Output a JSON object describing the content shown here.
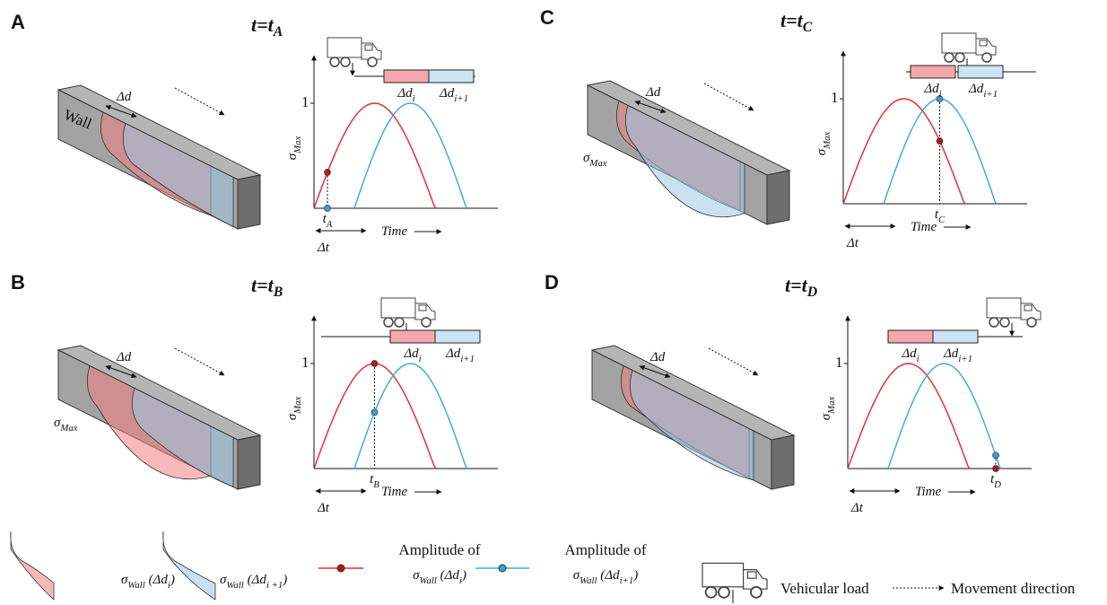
{
  "panels": [
    {
      "letter": "A",
      "title": [
        {
          "text": "t=t"
        },
        {
          "text": "A",
          "sub": true
        }
      ],
      "wall": "Wall",
      "delta_d": "Δd",
      "one": "1",
      "seg_i": [
        {
          "text": "Δd"
        },
        {
          "text": "i",
          "sub": true
        }
      ],
      "seg_i1": [
        {
          "text": "Δd"
        },
        {
          "text": "i+1",
          "sub": true
        }
      ],
      "y_label": [
        {
          "text": "σ"
        },
        {
          "text": "Max",
          "sub": true
        }
      ],
      "t_mark": [
        {
          "text": "t"
        },
        {
          "text": "A",
          "sub": true
        }
      ],
      "delta_t": "Δt",
      "time": "Time"
    },
    {
      "letter": "B",
      "title": [
        {
          "text": "t=t"
        },
        {
          "text": "B",
          "sub": true
        }
      ],
      "delta_d": "Δd",
      "sigma_max": [
        {
          "text": "σ"
        },
        {
          "text": "Max",
          "sub": true
        }
      ],
      "one": "1",
      "seg_i": [
        {
          "text": "Δd"
        },
        {
          "text": "i",
          "sub": true
        }
      ],
      "seg_i1": [
        {
          "text": "Δd"
        },
        {
          "text": "i+1",
          "sub": true
        }
      ],
      "y_label": [
        {
          "text": "σ"
        },
        {
          "text": "Max",
          "sub": true
        }
      ],
      "t_mark": [
        {
          "text": "t"
        },
        {
          "text": "B",
          "sub": true
        }
      ],
      "delta_t": "Δt",
      "time": "Time"
    },
    {
      "letter": "C",
      "title": [
        {
          "text": "t=t"
        },
        {
          "text": "C",
          "sub": true
        }
      ],
      "delta_d": "Δd",
      "sigma_max": [
        {
          "text": "σ"
        },
        {
          "text": "Max",
          "sub": true
        }
      ],
      "one": "1",
      "seg_i": [
        {
          "text": "Δd"
        },
        {
          "text": "i",
          "sub": true
        }
      ],
      "seg_i1": [
        {
          "text": "Δd"
        },
        {
          "text": "i+1",
          "sub": true
        }
      ],
      "y_label": [
        {
          "text": "σ"
        },
        {
          "text": "Max",
          "sub": true
        }
      ],
      "t_mark": [
        {
          "text": "t"
        },
        {
          "text": "C",
          "sub": true
        }
      ],
      "delta_t": "Δt",
      "time": "Time"
    },
    {
      "letter": "D",
      "title": [
        {
          "text": "t=t"
        },
        {
          "text": "D",
          "sub": true
        }
      ],
      "delta_d": "Δd",
      "one": "1",
      "seg_i": [
        {
          "text": "Δd"
        },
        {
          "text": "i",
          "sub": true
        }
      ],
      "seg_i1": [
        {
          "text": "Δd"
        },
        {
          "text": "i+1",
          "sub": true
        }
      ],
      "y_label": [
        {
          "text": "σ"
        },
        {
          "text": "Max",
          "sub": true
        }
      ],
      "t_mark": [
        {
          "text": "t"
        },
        {
          "text": "D",
          "sub": true
        }
      ],
      "delta_t": "Δt",
      "time": "Time"
    }
  ],
  "legend": {
    "wall_i": [
      {
        "text": "σ"
      },
      {
        "text": "Wall",
        "sub": true
      },
      {
        "text": " (Δd"
      },
      {
        "text": "i",
        "sub": true
      },
      {
        "text": ")"
      }
    ],
    "wall_i1": [
      {
        "text": "σ"
      },
      {
        "text": "Wall",
        "sub": true
      },
      {
        "text": " (Δd"
      },
      {
        "text": "i +1",
        "sub": true
      },
      {
        "text": ")"
      }
    ],
    "amp_i_title": "Amplitude of",
    "amp_i": [
      {
        "text": "σ"
      },
      {
        "text": "Wall",
        "sub": true
      },
      {
        "text": " (Δd"
      },
      {
        "text": "i",
        "sub": true
      },
      {
        "text": ")"
      }
    ],
    "amp_i1_title": "Amplitude of",
    "amp_i1": [
      {
        "text": "σ"
      },
      {
        "text": "Wall",
        "sub": true
      },
      {
        "text": " (Δd"
      },
      {
        "text": "i+1",
        "sub": true
      },
      {
        "text": ")"
      }
    ],
    "vehicle": "Vehicular load",
    "movement": "Movement direction"
  }
}
